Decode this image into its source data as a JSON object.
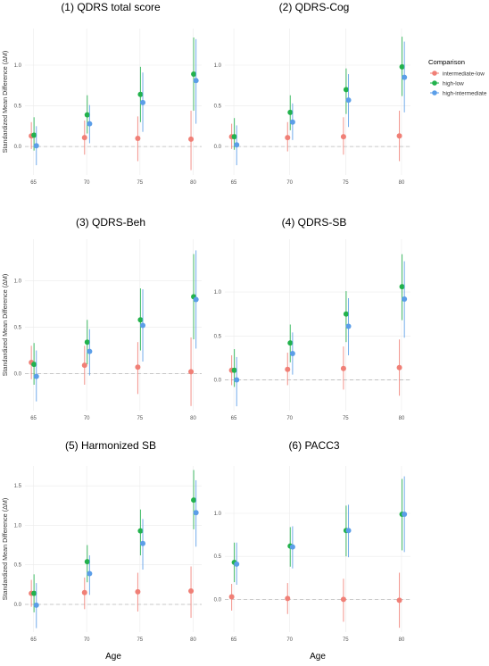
{
  "figure": {
    "x_axis_title": "Age",
    "y_axis_title": "Standardized Mean Difference (ΔM)",
    "legend": {
      "title": "Comparison",
      "placement": "right",
      "items": [
        {
          "label": "intermediate-low",
          "color": "#f07f76"
        },
        {
          "label": "high-low",
          "color": "#22b24c"
        },
        {
          "label": "high-intermediate",
          "color": "#5b9ee8"
        }
      ]
    }
  },
  "chart_data": [
    {
      "type": "scatter",
      "title": "(1)  QDRS total score",
      "xlabel": "",
      "ylabel": "Standardized Mean Difference (ΔM)",
      "x": [
        65,
        70,
        75,
        80
      ],
      "xticks": [
        "65",
        "70",
        "75",
        "80"
      ],
      "ylim": [
        -0.35,
        1.45
      ],
      "yticks": [
        0.0,
        0.5,
        1.0
      ],
      "ytick_labels": [
        "0.0",
        "0.5",
        "1.0"
      ],
      "grid": true,
      "series": [
        {
          "name": "intermediate-low",
          "color": "#f07f76",
          "values": [
            0.13,
            0.11,
            0.1,
            0.09
          ],
          "lower": [
            -0.03,
            -0.1,
            -0.18,
            -0.29
          ],
          "upper": [
            0.3,
            0.32,
            0.37,
            0.44
          ]
        },
        {
          "name": "high-low",
          "color": "#22b24c",
          "values": [
            0.14,
            0.39,
            0.64,
            0.89
          ],
          "lower": [
            -0.05,
            0.16,
            0.3,
            0.44
          ],
          "upper": [
            0.36,
            0.63,
            0.98,
            1.34
          ]
        },
        {
          "name": "high-intermediate",
          "color": "#5b9ee8",
          "values": [
            0.01,
            0.28,
            0.54,
            0.81
          ],
          "lower": [
            -0.23,
            0.04,
            0.18,
            0.28
          ],
          "upper": [
            0.25,
            0.51,
            0.91,
            1.32
          ]
        }
      ]
    },
    {
      "type": "scatter",
      "title": "(2)  QDRS-Cog",
      "xlabel": "",
      "ylabel": "",
      "x": [
        65,
        70,
        75,
        80
      ],
      "xticks": [
        "65",
        "70",
        "75",
        "80"
      ],
      "ylim": [
        -0.35,
        1.45
      ],
      "yticks": [
        0.0,
        0.5,
        1.0
      ],
      "ytick_labels": [
        "0.0",
        "0.5",
        "1.0"
      ],
      "grid": true,
      "series": [
        {
          "name": "intermediate-low",
          "color": "#f07f76",
          "values": [
            0.12,
            0.11,
            0.12,
            0.13
          ],
          "lower": [
            -0.03,
            -0.06,
            -0.1,
            -0.18
          ],
          "upper": [
            0.28,
            0.3,
            0.36,
            0.44
          ]
        },
        {
          "name": "high-low",
          "color": "#22b24c",
          "values": [
            0.12,
            0.42,
            0.7,
            0.98
          ],
          "lower": [
            -0.04,
            0.2,
            0.4,
            0.62
          ],
          "upper": [
            0.35,
            0.63,
            0.96,
            1.35
          ]
        },
        {
          "name": "high-intermediate",
          "color": "#5b9ee8",
          "values": [
            0.02,
            0.3,
            0.57,
            0.85
          ],
          "lower": [
            -0.23,
            0.08,
            0.24,
            0.42
          ],
          "upper": [
            0.26,
            0.53,
            0.89,
            1.29
          ]
        }
      ]
    },
    {
      "type": "scatter",
      "title": "(3)  QDRS-Beh",
      "xlabel": "",
      "ylabel": "Standardized Mean Difference (ΔM)",
      "x": [
        65,
        70,
        75,
        80
      ],
      "xticks": [
        "65",
        "70",
        "75",
        "80"
      ],
      "ylim": [
        -0.4,
        1.45
      ],
      "yticks": [
        0.0,
        0.5,
        1.0
      ],
      "ytick_labels": [
        "0.0",
        "0.5",
        "1.0"
      ],
      "grid": true,
      "series": [
        {
          "name": "intermediate-low",
          "color": "#f07f76",
          "values": [
            0.12,
            0.09,
            0.07,
            0.02
          ],
          "lower": [
            -0.06,
            -0.12,
            -0.22,
            -0.35
          ],
          "upper": [
            0.3,
            0.3,
            0.34,
            0.39
          ]
        },
        {
          "name": "high-low",
          "color": "#22b24c",
          "values": [
            0.1,
            0.34,
            0.58,
            0.83
          ],
          "lower": [
            -0.12,
            0.1,
            0.25,
            0.37
          ],
          "upper": [
            0.33,
            0.58,
            0.92,
            1.29
          ]
        },
        {
          "name": "high-intermediate",
          "color": "#5b9ee8",
          "values": [
            -0.03,
            0.24,
            0.52,
            0.8
          ],
          "lower": [
            -0.3,
            -0.02,
            0.13,
            0.27
          ],
          "upper": [
            0.25,
            0.48,
            0.91,
            1.33
          ]
        }
      ]
    },
    {
      "type": "scatter",
      "title": "(4)  QDRS-SB",
      "xlabel": "",
      "ylabel": "",
      "x": [
        65,
        70,
        75,
        80
      ],
      "xticks": [
        "65",
        "70",
        "75",
        "80"
      ],
      "ylim": [
        -0.35,
        1.6
      ],
      "yticks": [
        0.0,
        0.5,
        1.0
      ],
      "ytick_labels": [
        "0.0",
        "0.5",
        "1.0"
      ],
      "grid": true,
      "series": [
        {
          "name": "intermediate-low",
          "color": "#f07f76",
          "values": [
            0.11,
            0.12,
            0.13,
            0.14
          ],
          "lower": [
            -0.06,
            -0.06,
            -0.11,
            -0.18
          ],
          "upper": [
            0.28,
            0.31,
            0.38,
            0.46
          ]
        },
        {
          "name": "high-low",
          "color": "#22b24c",
          "values": [
            0.11,
            0.42,
            0.75,
            1.06
          ],
          "lower": [
            -0.08,
            0.2,
            0.43,
            0.68
          ],
          "upper": [
            0.35,
            0.63,
            1.01,
            1.43
          ]
        },
        {
          "name": "high-intermediate",
          "color": "#5b9ee8",
          "values": [
            0.0,
            0.3,
            0.61,
            0.92
          ],
          "lower": [
            -0.3,
            0.06,
            0.28,
            0.48
          ],
          "upper": [
            0.26,
            0.54,
            0.93,
            1.35
          ]
        }
      ]
    },
    {
      "type": "scatter",
      "title": "(5)  Harmonized SB",
      "xlabel": "Age",
      "ylabel": "Standardized Mean Difference (ΔM)",
      "x": [
        65,
        70,
        75,
        80
      ],
      "xticks": [
        "65",
        "70",
        "75",
        "80"
      ],
      "ylim": [
        -0.35,
        1.75
      ],
      "yticks": [
        0.0,
        0.5,
        1.0,
        1.5
      ],
      "ytick_labels": [
        "0.0",
        "0.5",
        "1.0",
        "1.5"
      ],
      "grid": true,
      "series": [
        {
          "name": "intermediate-low",
          "color": "#f07f76",
          "values": [
            0.14,
            0.15,
            0.16,
            0.17
          ],
          "lower": [
            -0.03,
            -0.06,
            -0.09,
            -0.17
          ],
          "upper": [
            0.31,
            0.34,
            0.4,
            0.48
          ]
        },
        {
          "name": "high-low",
          "color": "#22b24c",
          "values": [
            0.14,
            0.54,
            0.93,
            1.32
          ],
          "lower": [
            -0.1,
            0.28,
            0.62,
            0.95
          ],
          "upper": [
            0.38,
            0.75,
            1.2,
            1.7
          ]
        },
        {
          "name": "high-intermediate",
          "color": "#5b9ee8",
          "values": [
            -0.01,
            0.39,
            0.77,
            1.16
          ],
          "lower": [
            -0.3,
            0.12,
            0.44,
            0.73
          ],
          "upper": [
            0.27,
            0.62,
            1.08,
            1.57
          ]
        }
      ]
    },
    {
      "type": "scatter",
      "title": "(6)  PACC3",
      "xlabel": "Age",
      "ylabel": "",
      "x": [
        65,
        70,
        75,
        80
      ],
      "xticks": [
        "65",
        "70",
        "75",
        "80"
      ],
      "ylim": [
        -0.38,
        1.55
      ],
      "yticks": [
        0.0,
        0.5,
        1.0
      ],
      "ytick_labels": [
        "0.0",
        "0.5",
        "1.0"
      ],
      "grid": true,
      "series": [
        {
          "name": "intermediate-low",
          "color": "#f07f76",
          "values": [
            0.03,
            0.01,
            0.0,
            -0.01
          ],
          "lower": [
            -0.13,
            -0.17,
            -0.26,
            -0.33
          ],
          "upper": [
            0.18,
            0.19,
            0.24,
            0.31
          ]
        },
        {
          "name": "high-low",
          "color": "#22b24c",
          "values": [
            0.43,
            0.62,
            0.8,
            0.99
          ],
          "lower": [
            0.2,
            0.38,
            0.5,
            0.57
          ],
          "upper": [
            0.66,
            0.84,
            1.09,
            1.4
          ]
        },
        {
          "name": "high-intermediate",
          "color": "#5b9ee8",
          "values": [
            0.41,
            0.61,
            0.8,
            0.99
          ],
          "lower": [
            0.17,
            0.36,
            0.49,
            0.55
          ],
          "upper": [
            0.66,
            0.85,
            1.1,
            1.43
          ]
        }
      ]
    }
  ]
}
